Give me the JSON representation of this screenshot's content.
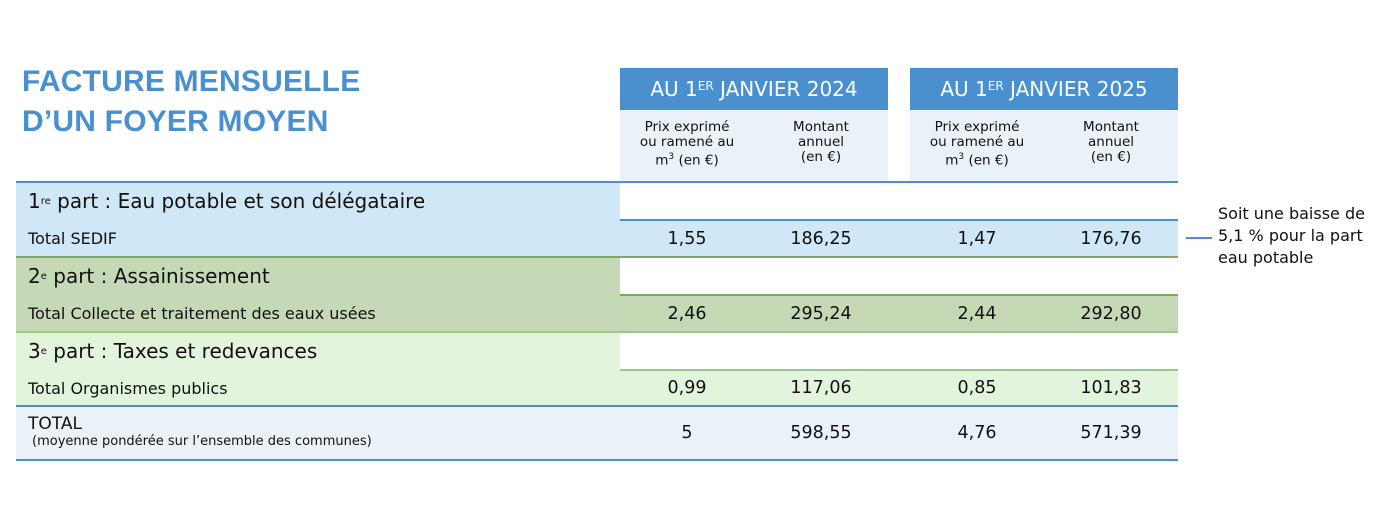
{
  "title": {
    "line1": "FACTURE MENSUELLE",
    "line2": "D’UN FOYER MOYEN"
  },
  "columns": {
    "year_2024": {
      "prefix": "AU 1",
      "sup": "ER",
      "suffix": " JANVIER 2024"
    },
    "year_2025": {
      "prefix": "AU 1",
      "sup": "ER",
      "suffix": " JANVIER 2025"
    },
    "price_line1": "Prix exprimé",
    "price_line2": "ou ramené au",
    "price_line3_base": "m",
    "price_line3_sup": "3",
    "price_line3_rest": " (en €)",
    "amount_line1": "Montant",
    "amount_line2": "annuel",
    "amount_line3": "(en €)"
  },
  "sections": [
    {
      "num": "1",
      "sup": "re",
      "title": " part : Eau potable et son délégataire",
      "total_label": "Total SEDIF",
      "values": [
        "1,55",
        "186,25",
        "1,47",
        "176,76"
      ]
    },
    {
      "num": "2",
      "sup": "e",
      "title": " part : Assainissement",
      "total_label": "Total Collecte et traitement des eaux usées",
      "values": [
        "2,46",
        "295,24",
        "2,44",
        "292,80"
      ]
    },
    {
      "num": "3",
      "sup": "e",
      "title": " part : Taxes et redevances",
      "total_label": "Total Organismes publics",
      "values": [
        "0,99",
        "117,06",
        "0,85",
        "101,83"
      ]
    }
  ],
  "total": {
    "label": "TOTAL",
    "sublabel": "(moyenne pondérée sur l’ensemble des communes)",
    "values": [
      "5",
      "598,55",
      "4,76",
      "571,39"
    ]
  },
  "note": {
    "line1": "Soit une baisse de",
    "line2": "5,1 % pour la part",
    "line3": "eau potable"
  },
  "colors": {
    "accent": "#4a90cf",
    "section1": "#cfe7f6",
    "section2": "#c5d9b6",
    "section3": "#e2f5dc",
    "total_row": "#eaf1f9"
  }
}
